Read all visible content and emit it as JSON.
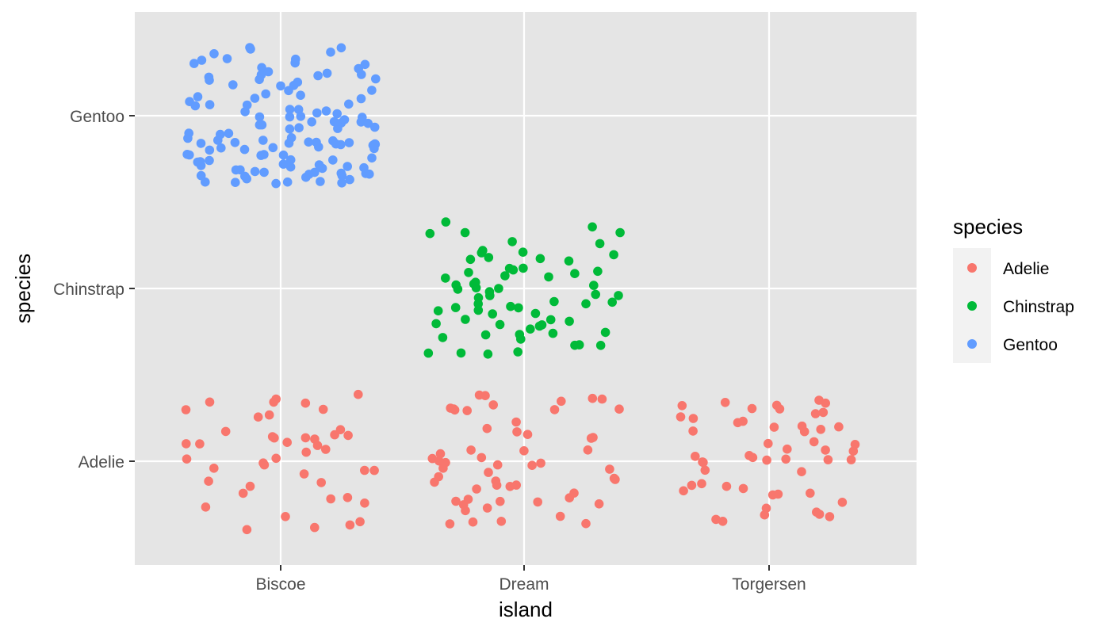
{
  "chart_data": {
    "type": "scatter",
    "subtype": "jitter",
    "title": "",
    "xlabel": "island",
    "ylabel": "species",
    "x_categories": [
      "Biscoe",
      "Dream",
      "Torgersen"
    ],
    "y_categories": [
      "Adelie",
      "Chinstrap",
      "Gentoo"
    ],
    "grid": true,
    "background": "#e5e5e5",
    "jitter": {
      "width": 0.4,
      "height": 0.4
    },
    "legend": {
      "title": "species",
      "position": "right",
      "entries": [
        {
          "label": "Adelie",
          "color": "#f8766d"
        },
        {
          "label": "Chinstrap",
          "color": "#00ba38"
        },
        {
          "label": "Gentoo",
          "color": "#619cff"
        }
      ]
    },
    "groups": [
      {
        "island": "Biscoe",
        "species": "Adelie",
        "count": 44,
        "color": "#f8766d"
      },
      {
        "island": "Dream",
        "species": "Adelie",
        "count": 56,
        "color": "#f8766d"
      },
      {
        "island": "Torgersen",
        "species": "Adelie",
        "count": 52,
        "color": "#f8766d"
      },
      {
        "island": "Dream",
        "species": "Chinstrap",
        "count": 68,
        "color": "#00ba38"
      },
      {
        "island": "Biscoe",
        "species": "Gentoo",
        "count": 124,
        "color": "#619cff"
      }
    ]
  }
}
